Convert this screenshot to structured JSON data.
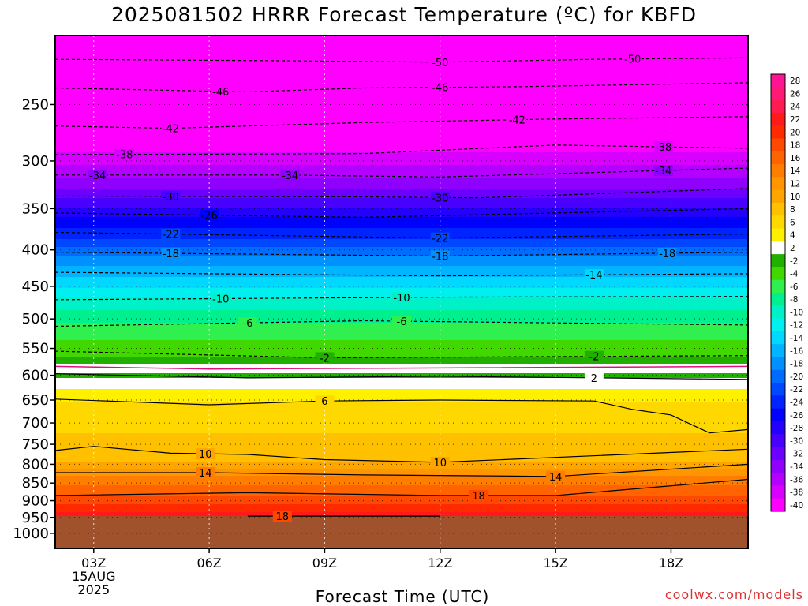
{
  "title": "2025081502 HRRR Forecast Temperature (ºC) for KBFD",
  "xlabel": "Forecast Time (UTC)",
  "credit": "coolwx.com/models",
  "chart_data": {
    "type": "heatmap",
    "title": "2025081502 HRRR Forecast Temperature (ºC) for KBFD",
    "xlabel": "Forecast Time (UTC)",
    "ylabel": "",
    "x_range_hours": [
      2,
      20
    ],
    "x_ticks": [
      {
        "hour": 3,
        "lines": [
          "03Z",
          "15AUG",
          "2025"
        ]
      },
      {
        "hour": 6,
        "lines": [
          "06Z"
        ]
      },
      {
        "hour": 9,
        "lines": [
          "09Z"
        ]
      },
      {
        "hour": 12,
        "lines": [
          "12Z"
        ]
      },
      {
        "hour": 15,
        "lines": [
          "15Z"
        ]
      },
      {
        "hour": 18,
        "lines": [
          "18Z"
        ]
      }
    ],
    "y_range_hpa": [
      200,
      1050
    ],
    "y_scale": "log",
    "y_ticks": [
      250,
      300,
      350,
      400,
      450,
      500,
      550,
      600,
      650,
      700,
      750,
      800,
      850,
      900,
      950,
      1000
    ],
    "surface_pressure_hpa": 946,
    "colorbar_levels": [
      28,
      26,
      24,
      22,
      20,
      18,
      16,
      14,
      12,
      10,
      8,
      6,
      4,
      2,
      -2,
      -4,
      -6,
      -8,
      -10,
      -12,
      -14,
      -16,
      -18,
      -20,
      -22,
      -24,
      -26,
      -28,
      -30,
      -32,
      -34,
      -36,
      -38,
      -40
    ],
    "colors": {
      "28": "#ff1493",
      "26": "#ff1a75",
      "24": "#ff1a50",
      "22": "#ff1a1a",
      "20": "#ff2a00",
      "18": "#ff4800",
      "16": "#ff6400",
      "14": "#ff7e00",
      "12": "#ff9600",
      "10": "#ffa500",
      "8": "#ffc000",
      "6": "#ffd800",
      "4": "#fff000",
      "2": "#ffffff",
      "-2": "#22b000",
      "-4": "#40d800",
      "-6": "#30f050",
      "-8": "#00f090",
      "-10": "#00f0c8",
      "-12": "#00f0f0",
      "-14": "#00d8ff",
      "-16": "#00b4ff",
      "-18": "#0090ff",
      "-20": "#006cff",
      "-22": "#0048ff",
      "-24": "#0024ff",
      "-26": "#0000ff",
      "-28": "#2400ff",
      "-30": "#4800ff",
      "-32": "#6c00ff",
      "-34": "#9000ff",
      "-36": "#b400ff",
      "-38": "#d800ff",
      "-40": "#ff00ff",
      "ground": "#a0522d"
    },
    "isotherms": [
      {
        "label": "-50",
        "values": [
          [
            2,
            216
          ],
          [
            8,
            217
          ],
          [
            12,
            218
          ],
          [
            16,
            216
          ],
          [
            20,
            215
          ]
        ],
        "label_hours": [
          12,
          17
        ]
      },
      {
        "label": "-46",
        "values": [
          [
            2,
            237
          ],
          [
            7,
            240
          ],
          [
            10,
            237
          ],
          [
            14,
            236
          ],
          [
            20,
            233
          ]
        ],
        "label_hours": [
          6.3,
          12
        ]
      },
      {
        "label": "-42",
        "values": [
          [
            2,
            268
          ],
          [
            5,
            270
          ],
          [
            10,
            265
          ],
          [
            15,
            262
          ],
          [
            20,
            260
          ]
        ],
        "label_hours": [
          5,
          14
        ]
      },
      {
        "label": "-38",
        "values": [
          [
            2,
            294
          ],
          [
            10,
            293
          ],
          [
            15,
            285
          ],
          [
            20,
            288
          ]
        ],
        "label_hours": [
          3.8,
          17.8
        ]
      },
      {
        "label": "-34",
        "values": [
          [
            2,
            314
          ],
          [
            8,
            314
          ],
          [
            12,
            316
          ],
          [
            20,
            307
          ]
        ],
        "label_hours": [
          3.1,
          8.1,
          17.8
        ]
      },
      {
        "label": "-30",
        "values": [
          [
            2,
            336
          ],
          [
            10,
            337
          ],
          [
            13,
            338
          ],
          [
            20,
            328
          ]
        ],
        "label_hours": [
          5,
          12
        ]
      },
      {
        "label": "-26",
        "values": [
          [
            2,
            355
          ],
          [
            10,
            360
          ],
          [
            20,
            350
          ]
        ],
        "label_hours": [
          6
        ]
      },
      {
        "label": "-22",
        "values": [
          [
            2,
            378
          ],
          [
            12,
            385
          ],
          [
            20,
            380
          ]
        ],
        "label_hours": [
          5,
          12
        ]
      },
      {
        "label": "-18",
        "values": [
          [
            2,
            403
          ],
          [
            12,
            408
          ],
          [
            20,
            403
          ]
        ],
        "label_hours": [
          5,
          12,
          17.9
        ]
      },
      {
        "label": "-14",
        "values": [
          [
            2,
            430
          ],
          [
            12,
            435
          ],
          [
            20,
            432
          ]
        ],
        "label_hours": [
          16
        ]
      },
      {
        "label": "-10",
        "values": [
          [
            2,
            470
          ],
          [
            12,
            466
          ],
          [
            20,
            465
          ]
        ],
        "label_hours": [
          6.3,
          11
        ]
      },
      {
        "label": "-6",
        "values": [
          [
            2,
            512
          ],
          [
            10,
            503
          ],
          [
            20,
            510
          ]
        ],
        "label_hours": [
          7,
          11
        ]
      },
      {
        "label": "-2",
        "values": [
          [
            2,
            555
          ],
          [
            9,
            567
          ],
          [
            20,
            563
          ]
        ],
        "label_hours": [
          9,
          16
        ]
      },
      {
        "label": "2",
        "values": [
          [
            2,
            597
          ],
          [
            7,
            605
          ],
          [
            12,
            602
          ],
          [
            20,
            608
          ]
        ],
        "label_hours": [
          16
        ]
      },
      {
        "label": "6",
        "values": [
          [
            2,
            648
          ],
          [
            6,
            660
          ],
          [
            9,
            652
          ],
          [
            12,
            650
          ],
          [
            16,
            652
          ],
          [
            17,
            670
          ],
          [
            18,
            682
          ],
          [
            19,
            723
          ],
          [
            20,
            715
          ]
        ],
        "label_hours": [
          9
        ]
      },
      {
        "label": "10",
        "values": [
          [
            2,
            765
          ],
          [
            3,
            755
          ],
          [
            5,
            772
          ],
          [
            7,
            775
          ],
          [
            9,
            788
          ],
          [
            12,
            795
          ],
          [
            20,
            762
          ]
        ],
        "label_hours": [
          5.9,
          12
        ]
      },
      {
        "label": "14",
        "values": [
          [
            2,
            822
          ],
          [
            6,
            822
          ],
          [
            10,
            828
          ],
          [
            15,
            832
          ],
          [
            20,
            800
          ]
        ],
        "label_hours": [
          5.9,
          15
        ]
      },
      {
        "label": "18",
        "values": [
          [
            2,
            885
          ],
          [
            7,
            877
          ],
          [
            12,
            885
          ],
          [
            15,
            885
          ],
          [
            20,
            840
          ]
        ],
        "label_hours": [
          13
        ]
      },
      {
        "label": "18",
        "values": [
          [
            7,
            946
          ],
          [
            12,
            946
          ]
        ],
        "label_hours": [
          7.9
        ]
      }
    ],
    "freezing_line": [
      [
        2,
        583
      ],
      [
        6,
        588
      ],
      [
        12,
        586
      ],
      [
        20,
        583
      ]
    ]
  }
}
